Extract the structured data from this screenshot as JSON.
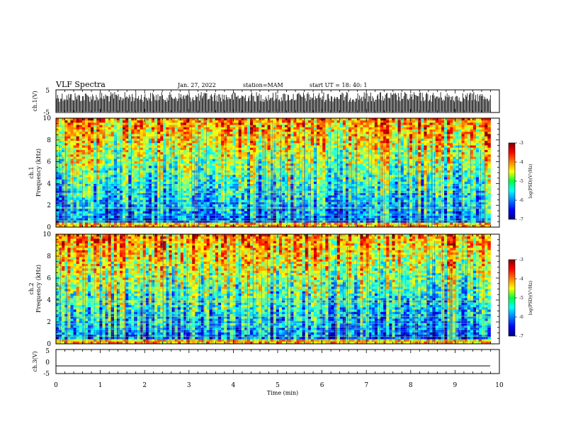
{
  "header": {
    "title": "VLF Spectra",
    "date": "Jan. 27, 2022",
    "station": "station=MAM",
    "start_ut": "start UT =  18: 40: 1"
  },
  "chart_data": [
    {
      "type": "line",
      "panel": "ch1-waveform",
      "ylabel": "ch.1(V)",
      "ylim": [
        -5,
        5
      ],
      "yticks": [
        "5",
        "-5"
      ],
      "xlim": [
        0,
        10
      ]
    },
    {
      "type": "heatmap",
      "panel": "ch1-spectrogram",
      "ylabel": "ch.1\nFrequency (kHz)",
      "ylabel_line1": "ch.1",
      "ylabel_line2": "Frequency (kHz)",
      "ylim": [
        0,
        10
      ],
      "yticks": [
        "0",
        "2",
        "4",
        "6",
        "8",
        "10"
      ],
      "xlim": [
        0,
        10
      ],
      "data_end_min": 9.8,
      "colorbar": {
        "label": "log(PSD)(V²/Hz)",
        "range": [
          -7,
          -3
        ],
        "ticks": [
          "-3",
          "-4",
          "-5",
          "-6",
          "-7"
        ]
      }
    },
    {
      "type": "heatmap",
      "panel": "ch2-spectrogram",
      "ylabel_line1": "ch.2",
      "ylabel_line2": "Frequency (kHz)",
      "ylim": [
        0,
        10
      ],
      "yticks": [
        "0",
        "2",
        "4",
        "6",
        "8",
        "10"
      ],
      "xlim": [
        0,
        10
      ],
      "data_end_min": 9.8,
      "colorbar": {
        "label": "log(PSD)(V²/Hz)",
        "range": [
          -7,
          -3
        ],
        "ticks": [
          "-3",
          "-4",
          "-5",
          "-6",
          "-7"
        ]
      }
    },
    {
      "type": "line",
      "panel": "ch3-waveform",
      "ylabel": "ch.3(V)",
      "ylim": [
        -5,
        5
      ],
      "yticks": [
        "5",
        "0",
        "-5"
      ],
      "level_v": -1.8,
      "xlim": [
        0,
        10
      ],
      "xlabel": "Time (min)",
      "xticks": [
        "0",
        "1",
        "2",
        "3",
        "4",
        "5",
        "6",
        "7",
        "8",
        "9",
        "10"
      ]
    }
  ]
}
